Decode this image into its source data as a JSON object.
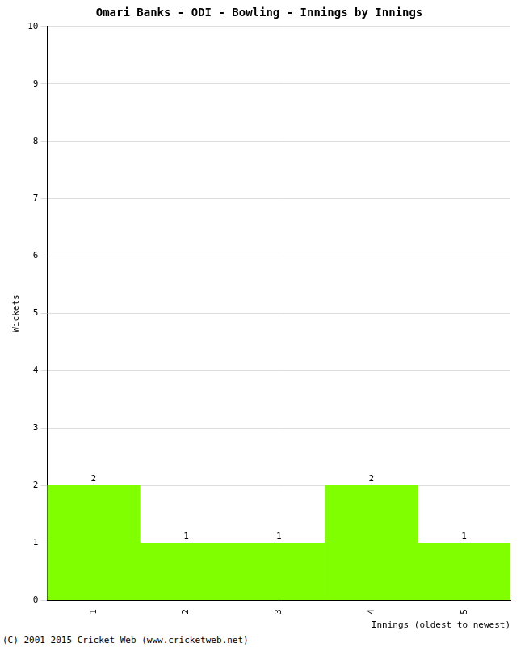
{
  "chart_data": {
    "type": "bar",
    "title": "Omari Banks - ODI - Bowling - Innings by Innings",
    "x_label": "Innings (oldest to newest)",
    "y_label": "Wickets",
    "categories": [
      "1",
      "2",
      "3",
      "4",
      "5"
    ],
    "values": [
      2,
      1,
      1,
      2,
      1
    ],
    "color": "#80ff00",
    "ylim": [
      0,
      10
    ],
    "yticks": [
      0,
      1,
      2,
      3,
      4,
      5,
      6,
      7,
      8,
      9,
      10
    ],
    "grid": true,
    "data_labels": true,
    "annotations": [
      "(C) 2001-2015 Cricket Web (www.cricketweb.net)"
    ]
  }
}
